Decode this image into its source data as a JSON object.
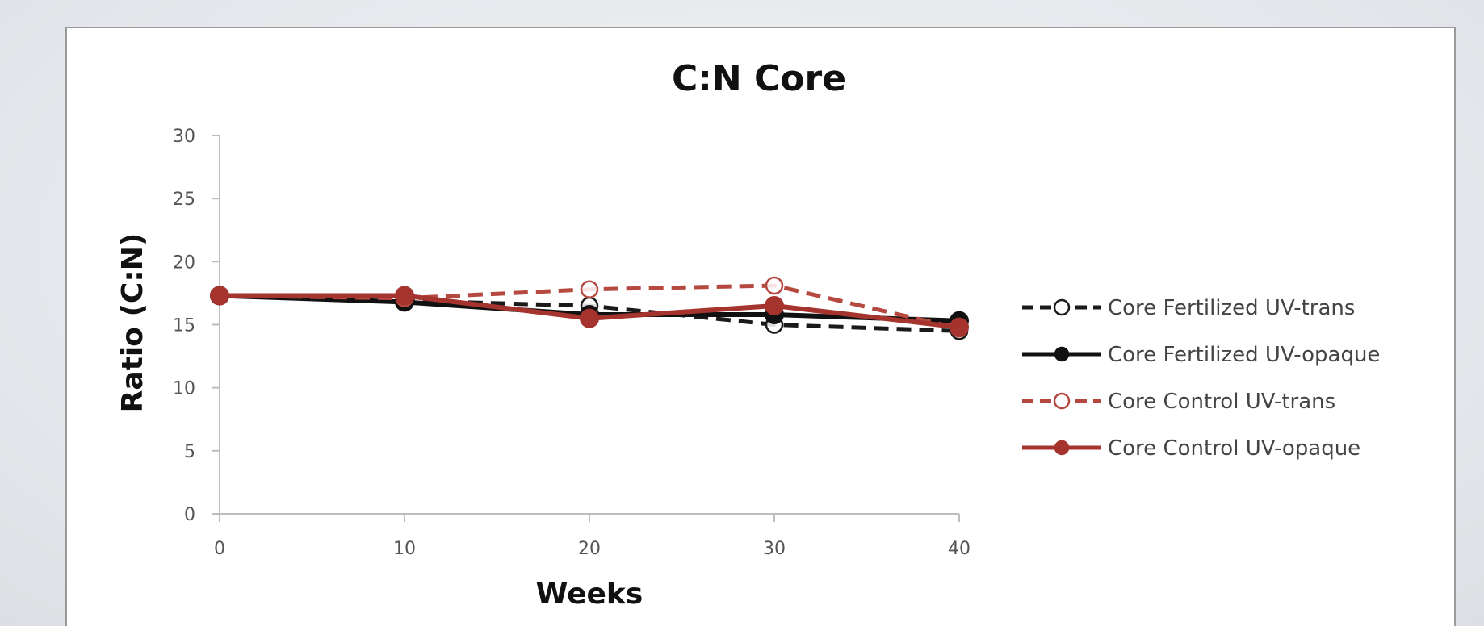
{
  "chart_data": {
    "type": "line",
    "title": "C:N Core",
    "xlabel": "Weeks",
    "ylabel": "Ratio (C:N)",
    "x": [
      0,
      10,
      20,
      30,
      40
    ],
    "xticks": [
      "0",
      "10",
      "20",
      "30",
      "40"
    ],
    "yticks": [
      "0",
      "5",
      "10",
      "15",
      "20",
      "25",
      "30"
    ],
    "xlim": [
      0,
      40
    ],
    "ylim": [
      0,
      30
    ],
    "grid": false,
    "legend_position": "right",
    "series": [
      {
        "name": "Core Fertilized UV-trans",
        "values": [
          17.3,
          16.9,
          16.5,
          15.0,
          14.5
        ],
        "color": "#1a1a1a",
        "dashed": true,
        "marker": "open-circle"
      },
      {
        "name": "Core Fertilized UV-opaque",
        "values": [
          17.3,
          16.8,
          15.8,
          15.8,
          15.3
        ],
        "color": "#111111",
        "dashed": false,
        "marker": "filled-circle"
      },
      {
        "name": "Core Control UV-trans",
        "values": [
          17.3,
          17.1,
          17.8,
          18.1,
          14.7
        ],
        "color": "#b5483f",
        "dashed": true,
        "marker": "open-circle"
      },
      {
        "name": "Core Control UV-opaque",
        "values": [
          17.3,
          17.3,
          15.5,
          16.5,
          14.8
        ],
        "color": "#a5332e",
        "dashed": false,
        "marker": "filled-circle"
      }
    ]
  }
}
